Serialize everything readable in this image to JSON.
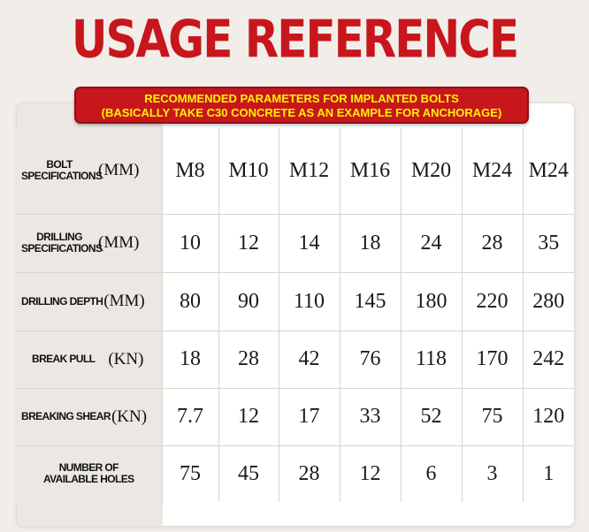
{
  "title": "USAGE REFERENCE",
  "banner": {
    "line1": "RECOMMENDED PARAMETERS FOR IMPLANTED BOLTS",
    "line2": "(BASICALLY TAKE C30 CONCRETE AS AN EXAMPLE FOR ANCHORAGE)"
  },
  "rows": [
    {
      "label": "BOLT SPECIFICATIONS",
      "unit": "(MM)",
      "values": [
        "M8",
        "M10",
        "M12",
        "M16",
        "M20",
        "M24",
        "M24"
      ]
    },
    {
      "label": "DRILLING SPECIFICATIONS",
      "unit": "(MM)",
      "values": [
        "10",
        "12",
        "14",
        "18",
        "24",
        "28",
        "35"
      ]
    },
    {
      "label": "DRILLING DEPTH",
      "unit": "(MM)",
      "values": [
        "80",
        "90",
        "110",
        "145",
        "180",
        "220",
        "280"
      ]
    },
    {
      "label": "BREAK PULL",
      "unit": "(KN)",
      "values": [
        "18",
        "28",
        "42",
        "76",
        "118",
        "170",
        "242"
      ]
    },
    {
      "label": "BREAKING SHEAR",
      "unit": "(KN)",
      "values": [
        "7.7",
        "12",
        "17",
        "33",
        "52",
        "75",
        "120"
      ]
    },
    {
      "label": "NUMBER OF AVAILABLE HOLES",
      "unit": "",
      "values": [
        "75",
        "45",
        "28",
        "12",
        "6",
        "3",
        "1"
      ]
    }
  ]
}
